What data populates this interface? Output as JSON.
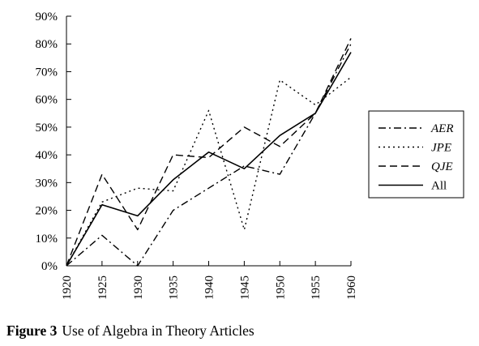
{
  "caption": {
    "label": "Figure 3",
    "text": "Use of Algebra in Theory Articles"
  },
  "chart_data": {
    "type": "line",
    "x": [
      1920,
      1925,
      1930,
      1935,
      1940,
      1945,
      1950,
      1955,
      1960
    ],
    "x_tick_labels": [
      "1920",
      "1925",
      "1930",
      "1935",
      "1940",
      "1945",
      "1950",
      "1955",
      "1960"
    ],
    "y_tick_labels": [
      "0%",
      "10%",
      "20%",
      "30%",
      "40%",
      "50%",
      "60%",
      "70%",
      "80%",
      "90%"
    ],
    "ylim": [
      0,
      90
    ],
    "xlim": [
      1920,
      1960
    ],
    "grid": false,
    "legend_position": "right",
    "series": [
      {
        "name": "AER",
        "dash": "dash-dot",
        "values": [
          0,
          11,
          0,
          20,
          28,
          36,
          33,
          55,
          80
        ]
      },
      {
        "name": "JPE",
        "dash": "dotted",
        "values": [
          0,
          23,
          28,
          27,
          56,
          13,
          67,
          58,
          68
        ]
      },
      {
        "name": "QJE",
        "dash": "dashed",
        "values": [
          0,
          33,
          13,
          40,
          39,
          50,
          43,
          55,
          82
        ]
      },
      {
        "name": "All",
        "dash": "solid",
        "values": [
          0,
          22,
          18,
          31,
          41,
          35,
          47,
          55,
          77
        ]
      }
    ]
  }
}
